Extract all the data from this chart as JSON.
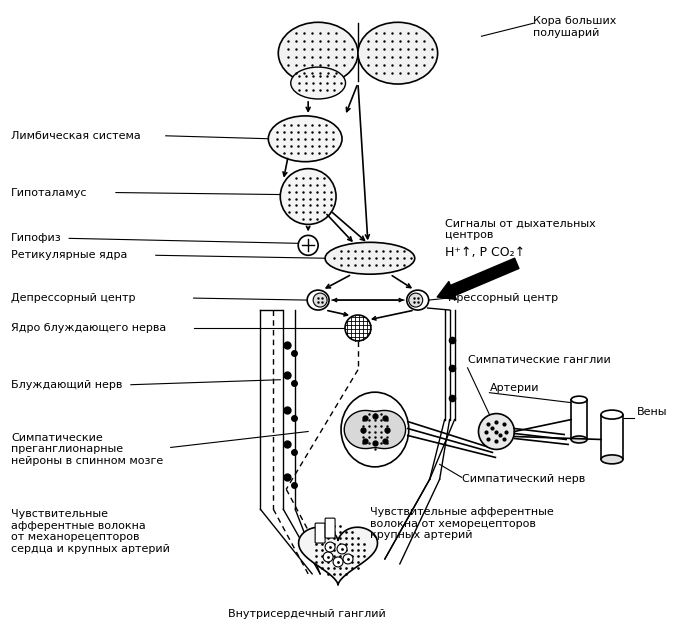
{
  "bg_color": "#ffffff",
  "line_color": "#000000",
  "font_size": 8.0,
  "labels": {
    "kora": "Кора больших\nполушарий",
    "limbic": "Лимбическая система",
    "gipotalamus": "Гипоталамус",
    "gipofiz": "Гипофиз",
    "retikulyar": "Ретикулярные ядра",
    "signaly": "Сигналы от дыхательных\nцентров",
    "hco2": "H⁺↑, P CO₂↑",
    "depressor": "Депрессорный центр",
    "pressor": "Прессорный центр",
    "yadro": "Ядро блуждающего нерва",
    "bluzhdayushiy": "Блуждающий нерв",
    "simpaticheskie_gangly": "Симпатические ганглии",
    "arterii": "Артерии",
    "veny": "Вены",
    "simpaticheskiy_nerv": "Симпатический нерв",
    "simpaticheskie_pregangl": "Симпатические\nпреганглионарные\nнейроны в спинном мозге",
    "chuvstvitelnye_mekh": "Чувствительные\nафферентные волокна\nот механорецепторов\nсердца и крупных артерий",
    "chuvstvitelnye_hem": "Чувствительные афферентные\nволокна от хеморецепторов\nкрупных артерий",
    "vnutriserdechnyy": "Внутрисердечный ганглий"
  }
}
